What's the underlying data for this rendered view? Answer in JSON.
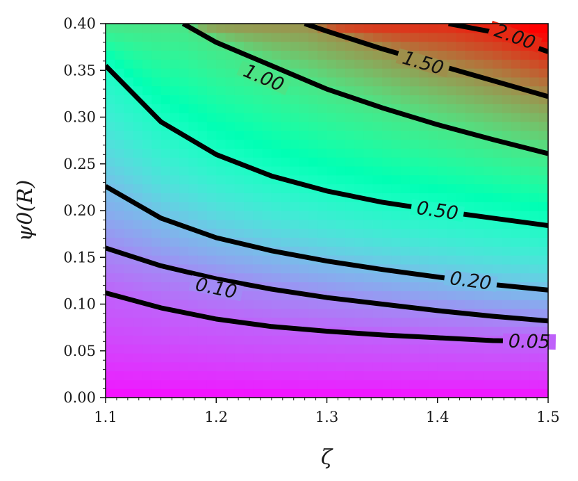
{
  "chart_data": {
    "type": "heatmap",
    "title": "",
    "xlabel": "ζ",
    "ylabel": "ψ0(R)",
    "xlim": [
      1.1,
      1.5
    ],
    "ylim": [
      0.0,
      0.4
    ],
    "x_ticks": [
      "1.1",
      "1.2",
      "1.3",
      "1.4",
      "1.5"
    ],
    "y_ticks": [
      "0.00",
      "0.05",
      "0.10",
      "0.15",
      "0.20",
      "0.25",
      "0.30",
      "0.35",
      "0.40"
    ],
    "colormap": "rainbow",
    "grid": false,
    "contour_levels": [
      {
        "label": "0.05",
        "value": 0.05,
        "points": [
          [
            1.1,
            0.112
          ],
          [
            1.15,
            0.096
          ],
          [
            1.2,
            0.084
          ],
          [
            1.25,
            0.076
          ],
          [
            1.3,
            0.071
          ],
          [
            1.35,
            0.067
          ],
          [
            1.4,
            0.064
          ],
          [
            1.45,
            0.061
          ],
          [
            1.5,
            0.06
          ]
        ]
      },
      {
        "label": "0.10",
        "value": 0.1,
        "points": [
          [
            1.1,
            0.16
          ],
          [
            1.15,
            0.141
          ],
          [
            1.2,
            0.127
          ],
          [
            1.25,
            0.116
          ],
          [
            1.3,
            0.107
          ],
          [
            1.35,
            0.1
          ],
          [
            1.4,
            0.093
          ],
          [
            1.45,
            0.087
          ],
          [
            1.5,
            0.082
          ]
        ]
      },
      {
        "label": "0.20",
        "value": 0.2,
        "points": [
          [
            1.1,
            0.226
          ],
          [
            1.15,
            0.192
          ],
          [
            1.2,
            0.171
          ],
          [
            1.25,
            0.157
          ],
          [
            1.3,
            0.146
          ],
          [
            1.35,
            0.137
          ],
          [
            1.4,
            0.129
          ],
          [
            1.45,
            0.121
          ],
          [
            1.5,
            0.115
          ]
        ]
      },
      {
        "label": "0.50",
        "value": 0.5,
        "points": [
          [
            1.1,
            0.355
          ],
          [
            1.15,
            0.295
          ],
          [
            1.2,
            0.26
          ],
          [
            1.25,
            0.237
          ],
          [
            1.3,
            0.221
          ],
          [
            1.35,
            0.209
          ],
          [
            1.4,
            0.2
          ],
          [
            1.45,
            0.192
          ],
          [
            1.5,
            0.184
          ]
        ]
      },
      {
        "label": "1.00",
        "value": 1.0,
        "points": [
          [
            1.17,
            0.4
          ],
          [
            1.2,
            0.38
          ],
          [
            1.25,
            0.355
          ],
          [
            1.3,
            0.33
          ],
          [
            1.35,
            0.31
          ],
          [
            1.4,
            0.292
          ],
          [
            1.45,
            0.276
          ],
          [
            1.5,
            0.261
          ]
        ]
      },
      {
        "label": "1.50",
        "value": 1.5,
        "points": [
          [
            1.28,
            0.4
          ],
          [
            1.3,
            0.392
          ],
          [
            1.35,
            0.373
          ],
          [
            1.4,
            0.356
          ],
          [
            1.45,
            0.339
          ],
          [
            1.5,
            0.322
          ]
        ]
      },
      {
        "label": "2.00",
        "value": 2.0,
        "points": [
          [
            1.41,
            0.4
          ],
          [
            1.45,
            0.391
          ],
          [
            1.5,
            0.37
          ]
        ]
      }
    ],
    "label_positions": [
      {
        "label": "0.05",
        "x": 1.483,
        "y": 0.06
      },
      {
        "label": "0.10",
        "x": 1.2,
        "y": 0.117
      },
      {
        "label": "0.20",
        "x": 1.43,
        "y": 0.125
      },
      {
        "label": "0.50",
        "x": 1.4,
        "y": 0.2
      },
      {
        "label": "1.00",
        "x": 1.243,
        "y": 0.342
      },
      {
        "label": "1.50",
        "x": 1.387,
        "y": 0.358
      },
      {
        "label": "2.00",
        "x": 1.47,
        "y": 0.386
      }
    ]
  }
}
